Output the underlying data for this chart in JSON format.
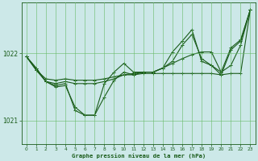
{
  "title": "Graphe pression niveau de la mer (hPa)",
  "bg_color": "#cce8e8",
  "grid_color": "#66bb66",
  "line_color": "#1a5c1a",
  "xlim": [
    -0.5,
    23.5
  ],
  "ylim": [
    1020.65,
    1022.75
  ],
  "yticks": [
    1021,
    1022
  ],
  "xticks": [
    0,
    1,
    2,
    3,
    4,
    5,
    6,
    7,
    8,
    9,
    10,
    11,
    12,
    13,
    14,
    15,
    16,
    17,
    18,
    19,
    20,
    21,
    22,
    23
  ],
  "series1": [
    1021.95,
    1021.75,
    1021.62,
    1021.6,
    1021.62,
    1021.6,
    1021.6,
    1021.6,
    1021.62,
    1021.65,
    1021.68,
    1021.68,
    1021.7,
    1021.7,
    1021.7,
    1021.7,
    1021.7,
    1021.7,
    1021.7,
    1021.7,
    1021.68,
    1021.7,
    1021.7,
    1022.65
  ],
  "series2": [
    1021.95,
    1021.78,
    1021.58,
    1021.5,
    1021.52,
    1021.2,
    1021.08,
    1021.08,
    1021.35,
    1021.6,
    1021.72,
    1021.68,
    1021.72,
    1021.72,
    1021.78,
    1021.88,
    1022.12,
    1022.28,
    1021.92,
    1021.82,
    1021.68,
    1022.05,
    1022.18,
    1022.65
  ],
  "series3": [
    1021.95,
    1021.78,
    1021.58,
    1021.52,
    1021.55,
    1021.15,
    1021.08,
    1021.08,
    1021.55,
    1021.72,
    1021.85,
    1021.72,
    1021.72,
    1021.72,
    1021.78,
    1022.02,
    1022.18,
    1022.35,
    1021.88,
    1021.82,
    1021.72,
    1022.08,
    1022.2,
    1022.65
  ],
  "series4": [
    1021.95,
    1021.75,
    1021.58,
    1021.55,
    1021.58,
    1021.55,
    1021.55,
    1021.55,
    1021.58,
    1021.62,
    1021.68,
    1021.7,
    1021.72,
    1021.72,
    1021.78,
    1021.85,
    1021.92,
    1021.98,
    1022.02,
    1022.02,
    1021.72,
    1021.82,
    1022.12,
    1022.65
  ]
}
